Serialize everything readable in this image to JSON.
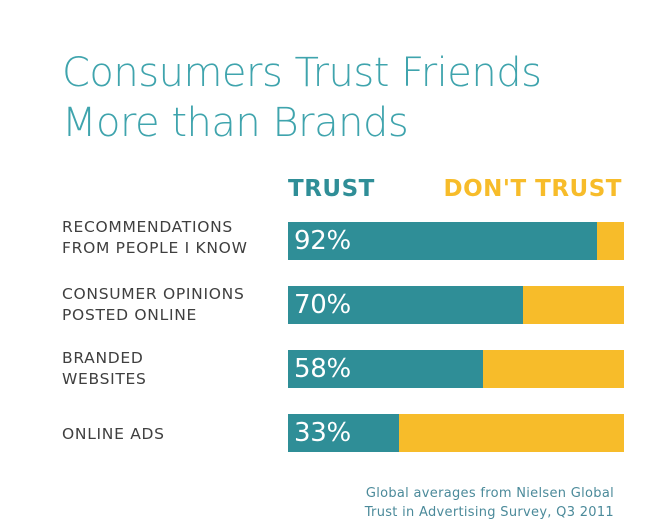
{
  "colors": {
    "teal": "#2f8e97",
    "gold": "#f7bc2a",
    "title_teal": "#3fa4ad",
    "source_teal": "#4b8a9a"
  },
  "title_lines": [
    "Consumers Trust Friends",
    "More than Brands"
  ],
  "chart_data": {
    "type": "bar",
    "orientation": "horizontal",
    "stacked": true,
    "percent_scale": true,
    "title": "Consumers Trust Friends More than Brands",
    "legend": [
      "TRUST",
      "DON'T TRUST"
    ],
    "legend_placement": "top",
    "categories": [
      [
        "RECOMMENDATIONS",
        "FROM PEOPLE I KNOW"
      ],
      [
        "CONSUMER OPINIONS",
        "POSTED ONLINE"
      ],
      [
        "BRANDED",
        "WEBSITES"
      ],
      [
        "ONLINE ADS"
      ]
    ],
    "series": [
      {
        "name": "TRUST",
        "values": [
          92,
          70,
          58,
          33
        ],
        "labels": [
          "92%",
          "70%",
          "58%",
          "33%"
        ]
      },
      {
        "name": "DON'T TRUST",
        "values": [
          8,
          30,
          42,
          67
        ]
      }
    ],
    "xlim": [
      0,
      100
    ],
    "grid": false
  },
  "source_lines": [
    "Global averages from Nielsen Global",
    "Trust in Advertising Survey, Q3 2011"
  ]
}
